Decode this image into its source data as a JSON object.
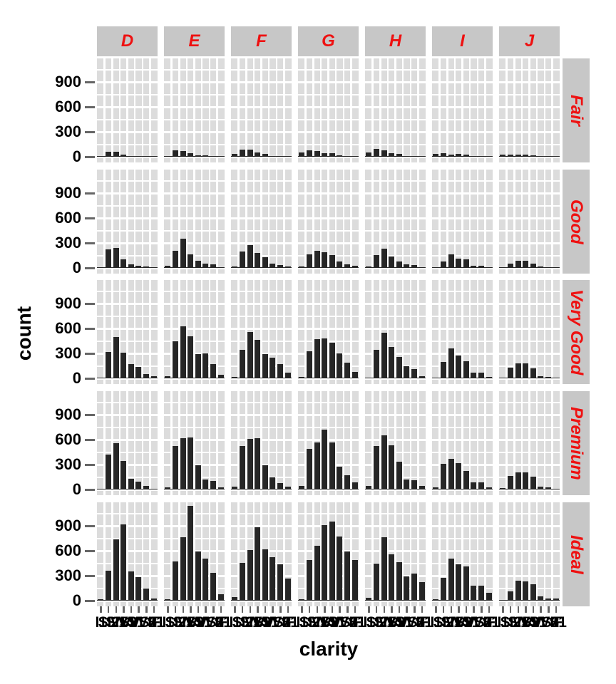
{
  "axes": {
    "y_title": "count",
    "x_title": "clarity",
    "y_tick_labels": [
      "900",
      "600",
      "300",
      "0"
    ]
  },
  "colors": {
    "bar": "#262626",
    "panel_bg": "#dcdcdc",
    "strip_bg": "#c7c7c7",
    "strip_text": "#ee1111",
    "tick": "#666666",
    "zero_line": "#2e2e2e",
    "gridline": "#ffffff"
  },
  "chart_data": {
    "type": "bar",
    "title": "",
    "xlabel": "clarity",
    "ylabel": "count",
    "x_categories": [
      "I1",
      "SI2",
      "SI1",
      "VS2",
      "VS1",
      "VVS2",
      "VVS1",
      "IF"
    ],
    "facet_cols": [
      "D",
      "E",
      "F",
      "G",
      "H",
      "I",
      "J"
    ],
    "facet_rows": [
      "Fair",
      "Good",
      "Very Good",
      "Premium",
      "Ideal"
    ],
    "y_ticks": [
      0,
      300,
      600,
      900
    ],
    "y_minor_ticks": [
      150,
      450,
      750,
      1050
    ],
    "ylim": [
      -70,
      1185
    ],
    "grid": "white-on-gray",
    "legend": "none",
    "counts": {
      "Fair": {
        "D": [
          4,
          56,
          58,
          25,
          5,
          9,
          3,
          3
        ],
        "E": [
          9,
          78,
          65,
          42,
          14,
          13,
          3,
          0
        ],
        "F": [
          35,
          89,
          83,
          53,
          33,
          10,
          5,
          4
        ],
        "G": [
          53,
          80,
          69,
          45,
          45,
          17,
          3,
          2
        ],
        "H": [
          52,
          91,
          75,
          41,
          32,
          11,
          1,
          0
        ],
        "I": [
          34,
          45,
          30,
          32,
          25,
          8,
          1,
          0
        ],
        "J": [
          23,
          27,
          28,
          23,
          16,
          1,
          1,
          0
        ]
      },
      "Good": {
        "D": [
          8,
          223,
          237,
          104,
          43,
          25,
          13,
          9
        ],
        "E": [
          23,
          202,
          355,
          160,
          89,
          52,
          43,
          9
        ],
        "F": [
          19,
          201,
          273,
          184,
          132,
          50,
          35,
          15
        ],
        "G": [
          19,
          163,
          207,
          192,
          152,
          75,
          41,
          22
        ],
        "H": [
          14,
          158,
          235,
          138,
          77,
          45,
          31,
          4
        ],
        "I": [
          9,
          81,
          165,
          110,
          103,
          26,
          22,
          6
        ],
        "J": [
          4,
          53,
          88,
          90,
          52,
          13,
          1,
          6
        ]
      },
      "Very Good": {
        "D": [
          5,
          314,
          494,
          309,
          175,
          141,
          52,
          23
        ],
        "E": [
          22,
          445,
          626,
          503,
          293,
          298,
          170,
          43
        ],
        "F": [
          13,
          343,
          559,
          466,
          293,
          249,
          174,
          67
        ],
        "G": [
          16,
          327,
          474,
          479,
          432,
          302,
          190,
          79
        ],
        "H": [
          12,
          343,
          547,
          376,
          257,
          145,
          115,
          29
        ],
        "I": [
          8,
          200,
          358,
          274,
          205,
          71,
          69,
          19
        ],
        "J": [
          8,
          128,
          182,
          184,
          120,
          29,
          19,
          8
        ]
      },
      "Premium": {
        "D": [
          12,
          421,
          556,
          339,
          131,
          94,
          40,
          10
        ],
        "E": [
          30,
          519,
          614,
          629,
          292,
          121,
          105,
          27
        ],
        "F": [
          34,
          523,
          608,
          619,
          290,
          146,
          80,
          31
        ],
        "G": [
          46,
          492,
          566,
          721,
          566,
          275,
          171,
          87
        ],
        "H": [
          46,
          521,
          655,
          532,
          336,
          118,
          112,
          40
        ],
        "I": [
          24,
          312,
          367,
          315,
          221,
          82,
          84,
          23
        ],
        "J": [
          13,
          161,
          209,
          202,
          153,
          34,
          24,
          12
        ]
      },
      "Ideal": {
        "D": [
          13,
          356,
          738,
          920,
          351,
          284,
          144,
          28
        ],
        "E": [
          18,
          469,
          766,
          1136,
          593,
          507,
          335,
          79
        ],
        "F": [
          42,
          453,
          608,
          879,
          616,
          520,
          440,
          268
        ],
        "G": [
          16,
          486,
          660,
          910,
          953,
          774,
          594,
          491
        ],
        "H": [
          38,
          450,
          763,
          556,
          467,
          289,
          326,
          226
        ],
        "I": [
          17,
          274,
          504,
          438,
          408,
          178,
          179,
          95
        ],
        "J": [
          2,
          110,
          243,
          232,
          201,
          54,
          29,
          25
        ]
      }
    }
  }
}
